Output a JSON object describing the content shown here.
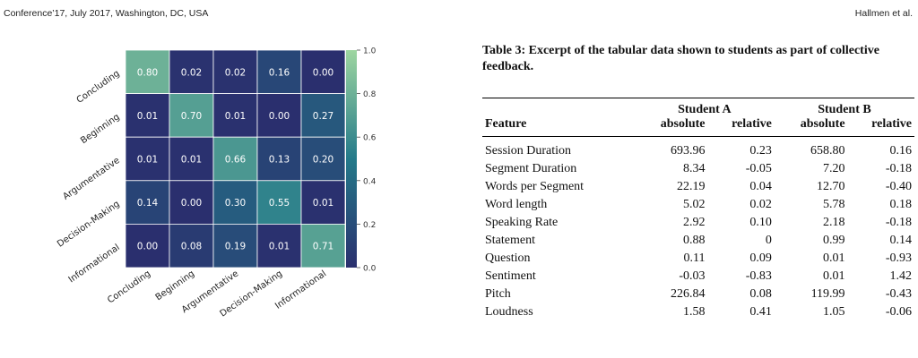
{
  "header": {
    "left": "Conference’17, July 2017, Washington, DC, USA",
    "right": "Hallmen et al."
  },
  "colors": {
    "low": "#2a2f6e",
    "mid": "#247a8a",
    "high": "#9ed6a0",
    "cell_border": "#ffffff"
  },
  "chart_data": {
    "type": "heatmap",
    "rows": [
      "Concluding",
      "Beginning",
      "Argumentative",
      "Decision-Making",
      "Informational"
    ],
    "columns": [
      "Concluding",
      "Beginning",
      "Argumentative",
      "Decision-Making",
      "Informational"
    ],
    "values": [
      [
        0.8,
        0.02,
        0.02,
        0.16,
        0.0
      ],
      [
        0.01,
        0.7,
        0.01,
        0.0,
        0.27
      ],
      [
        0.01,
        0.01,
        0.66,
        0.13,
        0.2
      ],
      [
        0.14,
        0.0,
        0.3,
        0.55,
        0.01
      ],
      [
        0.0,
        0.08,
        0.19,
        0.01,
        0.71
      ]
    ],
    "colorbar": {
      "range": [
        0.0,
        1.0
      ],
      "ticks": [
        "0.0",
        "0.2",
        "0.4",
        "0.6",
        "0.8",
        "1.0"
      ]
    }
  },
  "table": {
    "caption": "Table 3: Excerpt of the tabular data shown to students as part of collective feedback.",
    "group_headers": [
      "Student A",
      "Student B"
    ],
    "columns": [
      "Feature",
      "absolute",
      "relative",
      "absolute",
      "relative"
    ],
    "rows": [
      [
        "Session Duration",
        "693.96",
        "0.23",
        "658.80",
        "0.16"
      ],
      [
        "Segment Duration",
        "8.34",
        "-0.05",
        "7.20",
        "-0.18"
      ],
      [
        "Words per Segment",
        "22.19",
        "0.04",
        "12.70",
        "-0.40"
      ],
      [
        "Word length",
        "5.02",
        "0.02",
        "5.78",
        "0.18"
      ],
      [
        "Speaking Rate",
        "2.92",
        "0.10",
        "2.18",
        "-0.18"
      ],
      [
        "Statement",
        "0.88",
        "0",
        "0.99",
        "0.14"
      ],
      [
        "Question",
        "0.11",
        "0.09",
        "0.01",
        "-0.93"
      ],
      [
        "Sentiment",
        "-0.03",
        "-0.83",
        "0.01",
        "1.42"
      ],
      [
        "Pitch",
        "226.84",
        "0.08",
        "119.99",
        "-0.43"
      ],
      [
        "Loudness",
        "1.58",
        "0.41",
        "1.05",
        "-0.06"
      ]
    ]
  }
}
